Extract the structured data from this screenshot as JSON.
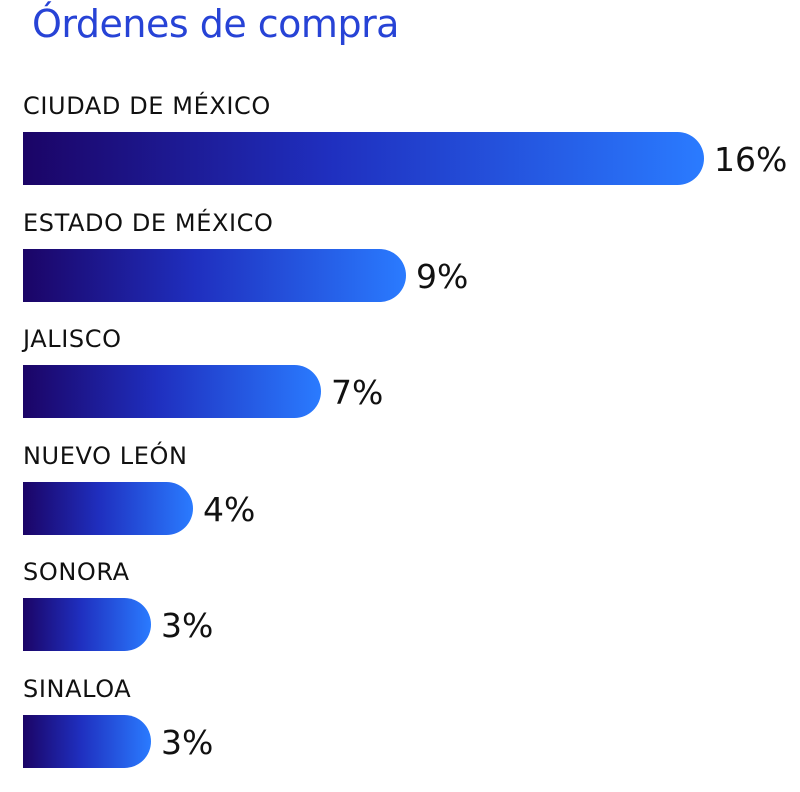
{
  "title": "Órdenes de compra",
  "colors": {
    "title": "#2743d6",
    "text": "#111111",
    "bar_gradient_start": "#1b0466",
    "bar_gradient_mid": "#1f2fbf",
    "bar_gradient_end": "#2a7bff"
  },
  "chart_data": {
    "type": "bar",
    "orientation": "horizontal",
    "title": "Órdenes de compra",
    "categories": [
      "CIUDAD DE MÉXICO",
      "ESTADO DE MÉXICO",
      "JALISCO",
      "NUEVO LEÓN",
      "SONORA",
      "SINALOA"
    ],
    "values": [
      16,
      9,
      7,
      4,
      3,
      3
    ],
    "value_labels": [
      "16%",
      "9%",
      "7%",
      "4%",
      "3%",
      "3%"
    ],
    "unit": "%",
    "grid": false,
    "legend": "none"
  }
}
